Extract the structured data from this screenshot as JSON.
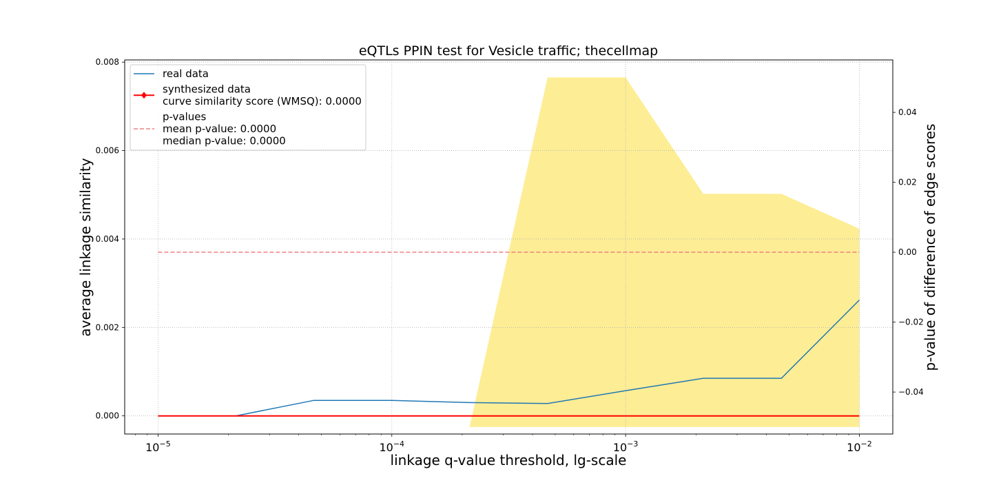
{
  "chart_data": {
    "type": "line",
    "title": "eQTLs PPIN test for Vesicle traffic; thecellmap",
    "xlabel": "linkage q-value threshold, lg-scale",
    "ylabel": "average linkage similarity",
    "y2label": "p-value of difference of edge scores",
    "xscale": "log",
    "xlim": [
      7.2e-06,
      0.0139
    ],
    "ylim": [
      -0.00041,
      0.00805
    ],
    "y2lim": [
      -0.052,
      0.055
    ],
    "grid": true,
    "legend_position": "top-left",
    "x_ticks": [
      {
        "value": 1e-05,
        "base": "10",
        "exp": "−5"
      },
      {
        "value": 0.0001,
        "base": "10",
        "exp": "−4"
      },
      {
        "value": 0.001,
        "base": "10",
        "exp": "−3"
      },
      {
        "value": 0.01,
        "base": "10",
        "exp": "−2"
      }
    ],
    "y_ticks": [
      "0.000",
      "0.002",
      "0.004",
      "0.006",
      "0.008"
    ],
    "y2_ticks": [
      "−0.04",
      "−0.02",
      "0.00",
      "0.02",
      "0.04"
    ],
    "x": [
      1e-05,
      2.15e-05,
      4.64e-05,
      0.0001,
      0.000215,
      0.000464,
      0.001,
      0.00215,
      0.00464,
      0.01
    ],
    "series": [
      {
        "name": "real data",
        "axis": "left",
        "color": "#1f77b4",
        "values": [
          0.0,
          0.0,
          0.00035,
          0.00035,
          0.0003,
          0.00028,
          0.00057,
          0.00085,
          0.00085,
          0.00262
        ]
      },
      {
        "name": "synthesized data",
        "axis": "left",
        "color": "#ff0000",
        "marker": "diamond",
        "values": [
          0,
          0,
          0,
          0,
          0,
          0,
          0,
          0,
          0,
          0
        ]
      },
      {
        "name": "p-values",
        "axis": "right",
        "color": "#f08080",
        "style": "dashed",
        "values": [
          0,
          0,
          0,
          0,
          0,
          0,
          0,
          0,
          0,
          0
        ]
      }
    ],
    "fill": {
      "color": "#fde97a",
      "axis": "right",
      "x": [
        0.000215,
        0.000464,
        0.001,
        0.00215,
        0.00464,
        0.01
      ],
      "upper": [
        -0.05,
        0.05,
        0.05,
        0.0167,
        0.0167,
        0.0067
      ],
      "lower": -0.05
    },
    "legend": [
      {
        "lines": [
          "real data"
        ],
        "series": 0
      },
      {
        "lines": [
          "synthesized data",
          "curve similarity score (WMSQ): 0.0000"
        ],
        "series": 1
      },
      {
        "lines": [
          "p-values",
          "mean p-value: 0.0000",
          "median p-value: 0.0000"
        ],
        "series": 2
      }
    ]
  }
}
